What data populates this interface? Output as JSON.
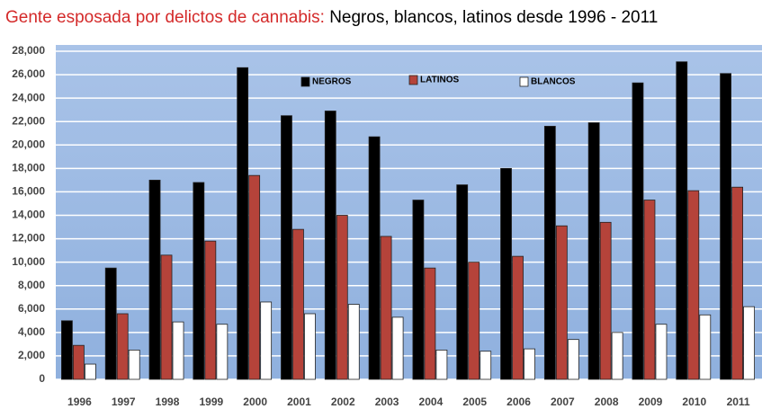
{
  "chart_data": {
    "type": "bar",
    "title": "Gente esposada por delictos de cannabis:",
    "subtitle": "Negros, blancos, latinos desde 1996 - 2011",
    "categories": [
      "1996",
      "1997",
      "1998",
      "1999",
      "2000",
      "2001",
      "2002",
      "2003",
      "2004",
      "2005",
      "2006",
      "2007",
      "2008",
      "2009",
      "2010",
      "2011"
    ],
    "series": [
      {
        "name": "NEGROS",
        "color": "#000000",
        "values": [
          5000,
          9500,
          17000,
          16800,
          26600,
          22500,
          22900,
          20700,
          15300,
          16600,
          18000,
          21600,
          21900,
          25300,
          27100,
          26100
        ]
      },
      {
        "name": "LATINOS",
        "color": "#b5433a",
        "values": [
          2900,
          5600,
          10600,
          11800,
          17400,
          12800,
          14000,
          12200,
          9500,
          10000,
          10500,
          13100,
          13400,
          15300,
          16100,
          16400
        ]
      },
      {
        "name": "BLANCOS",
        "color": "#ffffff",
        "values": [
          1300,
          2500,
          4900,
          4700,
          6600,
          5600,
          6400,
          5300,
          2500,
          2400,
          2600,
          3400,
          4000,
          4700,
          5500,
          6200
        ]
      }
    ],
    "ylim": [
      0,
      28000
    ],
    "yticks": [
      0,
      {
        "value": 2000,
        "label": "2,000"
      },
      {
        "value": 4000,
        "label": "4,000"
      },
      {
        "value": 6000,
        "label": "6,000"
      },
      {
        "value": 8000,
        "label": "8,000"
      },
      {
        "value": 10000,
        "label": "10,000"
      },
      {
        "value": 12000,
        "label": "12,000"
      },
      {
        "value": 14000,
        "label": "14,000"
      },
      {
        "value": 16000,
        "label": "16,000"
      },
      {
        "value": 18000,
        "label": "18,000"
      },
      {
        "value": 20000,
        "label": "20,000"
      },
      {
        "value": 22000,
        "label": "22,000"
      },
      {
        "value": 24000,
        "label": "24,000"
      },
      {
        "value": 26000,
        "label": "26,000"
      },
      {
        "value": 28000,
        "label": "28,000"
      }
    ],
    "grid": true
  }
}
